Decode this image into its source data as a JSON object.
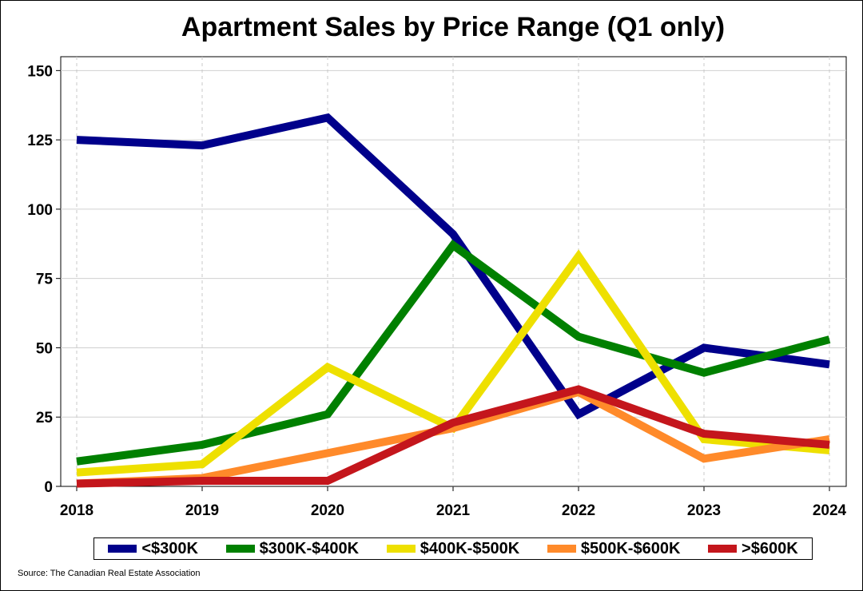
{
  "chart_data": {
    "type": "line",
    "title": "Apartment Sales by Price Range (Q1 only)",
    "x": [
      "2018",
      "2019",
      "2020",
      "2021",
      "2022",
      "2023",
      "2024"
    ],
    "ylim": [
      0,
      155
    ],
    "yticks": [
      0,
      25,
      50,
      75,
      100,
      125,
      150
    ],
    "xlabel": "",
    "ylabel": "",
    "grid": true,
    "legend_position": "bottom",
    "series": [
      {
        "name": "<$300K",
        "color": "#00008B",
        "values": [
          125,
          123,
          133,
          91,
          26,
          50,
          44
        ]
      },
      {
        "name": "$300K-$400K",
        "color": "#008000",
        "values": [
          9,
          15,
          26,
          87,
          54,
          41,
          53
        ]
      },
      {
        "name": "$400K-$500K",
        "color": "#EEE000",
        "values": [
          5,
          8,
          43,
          21,
          83,
          17,
          13
        ]
      },
      {
        "name": "$500K-$600K",
        "color": "#FF8A2A",
        "values": [
          1,
          3,
          12,
          21,
          34,
          10,
          17
        ]
      },
      {
        "name": ">$600K",
        "color": "#C4161C",
        "values": [
          1,
          2,
          2,
          23,
          35,
          19,
          15
        ]
      }
    ]
  },
  "source": "Source: The Canadian Real Estate Association"
}
